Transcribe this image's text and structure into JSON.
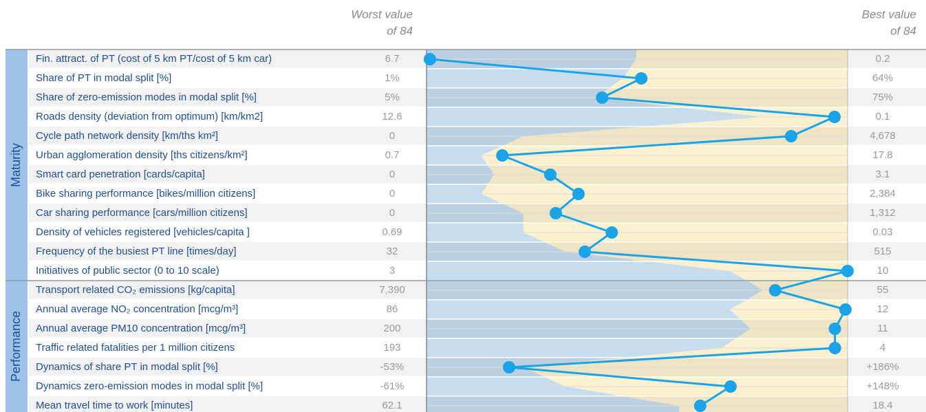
{
  "chart_data": {
    "type": "profile",
    "worst_header": [
      "Worst value",
      "of 84"
    ],
    "best_header": [
      "Best value",
      "of 84"
    ],
    "xlim": [
      0,
      100
    ],
    "color": "#1aa3e8",
    "shade_color": "#c6ddef",
    "rest_color": "#fcf1cf",
    "group_color": "#9dc3e6",
    "groups": [
      {
        "name": "Maturity",
        "labels": [
          "Fin. attract. of PT (cost of 5 km PT/cost of 5 km car)",
          "Share of PT in modal split [%]",
          "Share of zero-emission modes in modal split [%]",
          "Roads density (deviation from optimum) [km/km2]",
          "Cycle path network density [km/ths km²]",
          "Urban agglomeration density [ths citizens/km²]",
          "Smart card penetration [cards/capita]",
          "Bike sharing performance [bikes/million citizens]",
          "Car sharing performance [cars/million citizens]",
          "Density of vehicles registered [vehicles/capita ]",
          "Frequency of the busiest PT line [times/day]",
          "Initiatives of public sector (0 to 10 scale)"
        ],
        "worst": [
          "6.7",
          "1%",
          "5%",
          "12.6",
          "0",
          "0.7",
          "0",
          "0",
          "0",
          "0.69",
          "32",
          "3"
        ],
        "best": [
          "0.2",
          "64%",
          "75%",
          "0.1",
          "4,678",
          "17.8",
          "3.1",
          "2,384",
          "1,312",
          "0.03",
          "515",
          "10"
        ],
        "values": [
          0.8,
          51,
          41.7,
          96.9,
          86.6,
          18,
          29.4,
          36.1,
          30.7,
          44,
          37.6,
          100
        ],
        "shade": [
          49.8,
          46.6,
          40,
          80,
          23,
          13,
          16,
          13,
          23,
          23,
          33,
          72
        ]
      },
      {
        "name": "Performance",
        "labels": [
          "Transport related CO₂ emissions [kg/capita]",
          "Annual average NO₂ concentration [mcg/m³]",
          "Annual average PM10 concentration [mcg/m³]",
          "Traffic related fatalities per 1 million citizens",
          "Dynamics of share PT in modal split [%]",
          "Dynamics zero-emission modes in modal split [%]",
          "Mean travel time to work [minutes]"
        ],
        "worst": [
          "7,390",
          "86",
          "200",
          "193",
          "-53%",
          "-61%",
          "62.1"
        ],
        "best": [
          "55",
          "12",
          "11",
          "4",
          "+186%",
          "+148%",
          "18.4"
        ],
        "values": [
          82.8,
          99.5,
          97,
          97,
          19.6,
          72.2,
          65
        ],
        "shade": [
          80,
          72,
          77,
          70,
          23,
          33,
          60
        ]
      }
    ]
  }
}
